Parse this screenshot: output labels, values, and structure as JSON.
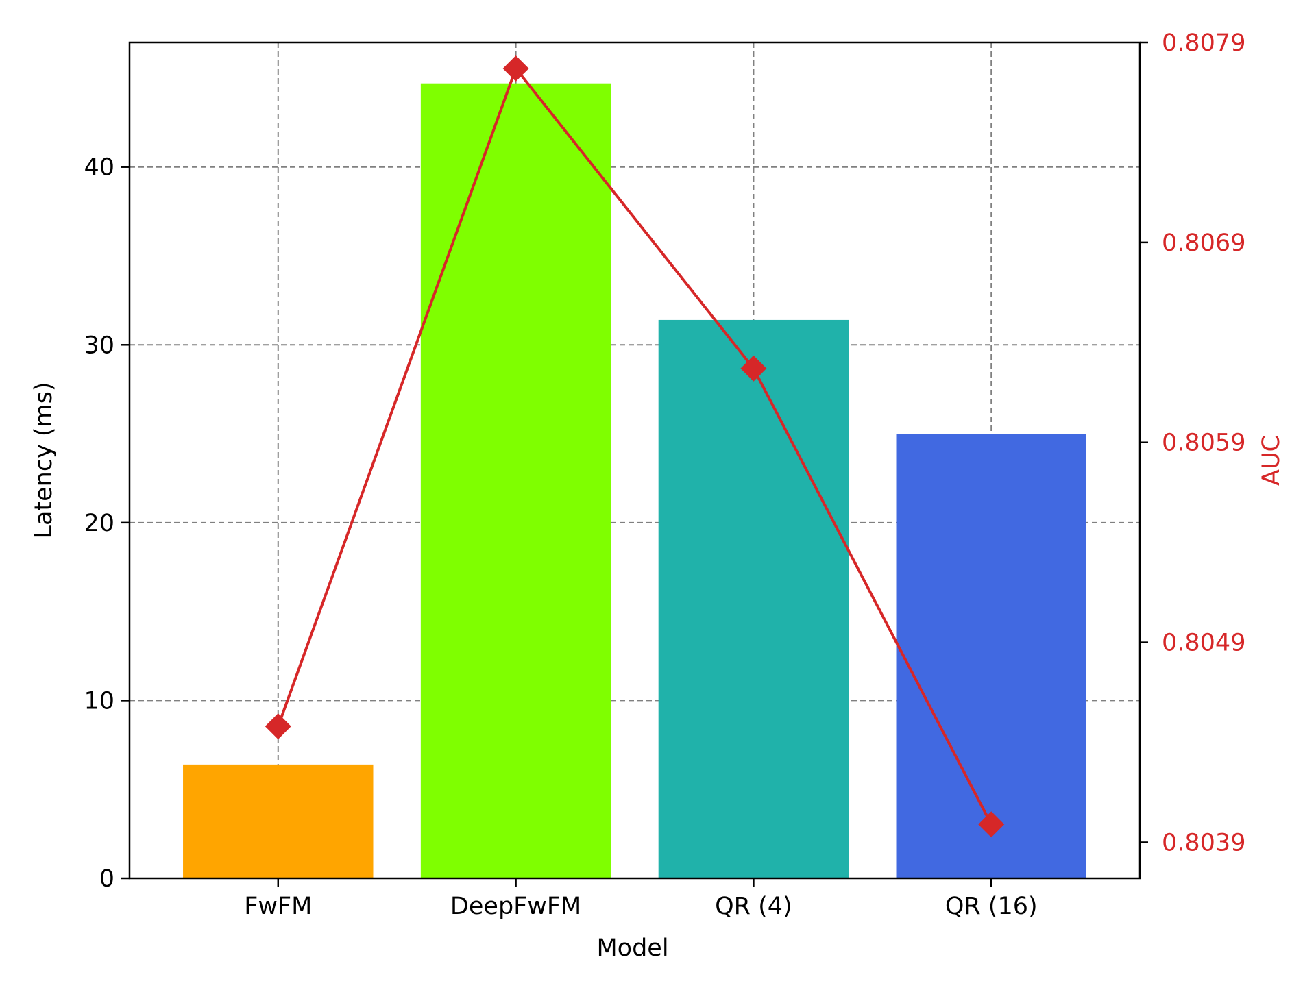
{
  "chart_data": {
    "type": "bar",
    "categories": [
      "FwFM",
      "DeepFwFM",
      "QR (4)",
      "QR (16)"
    ],
    "bar_colors": [
      "#FFA500",
      "#7FFF00",
      "#20B2AA",
      "#4169E1"
    ],
    "values": [
      6.4,
      44.7,
      31.4,
      25.0
    ],
    "xlabel": "Model",
    "ylabel": "Latency (ms)",
    "ylim": [
      0,
      47
    ],
    "yticks": [
      0,
      10,
      20,
      30,
      40
    ],
    "grid": true,
    "secondary_axis": {
      "type": "line",
      "marker": "diamond",
      "color": "#D62728",
      "ylabel": "AUC",
      "values": [
        0.80448,
        0.80777,
        0.80627,
        0.80399
      ],
      "ylim": [
        0.80372,
        0.8079
      ],
      "yticks": [
        0.8039,
        0.8049,
        0.8059,
        0.8069,
        0.8079
      ],
      "ytick_labels": [
        "0.8039",
        "0.8049",
        "0.8059",
        "0.8069",
        "0.8079"
      ]
    }
  }
}
